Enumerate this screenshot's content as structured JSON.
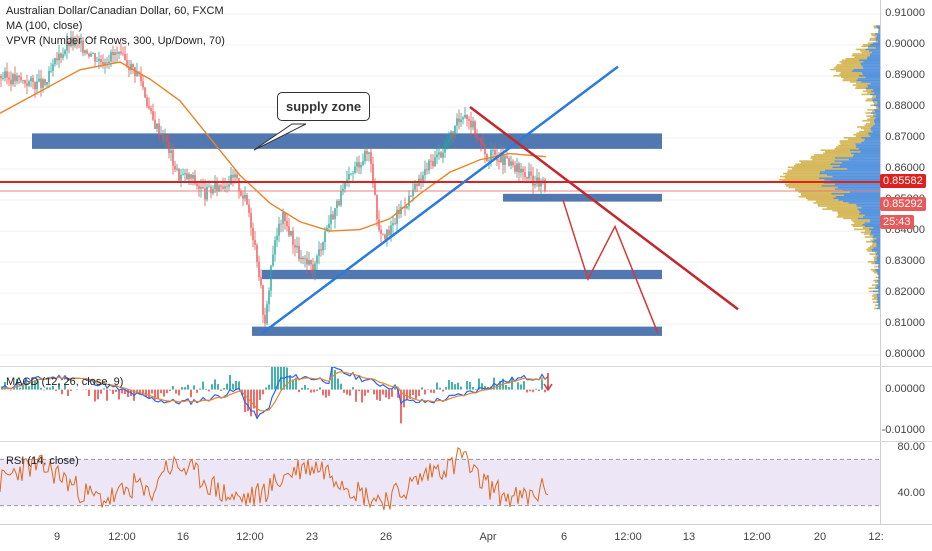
{
  "legend": {
    "symbol": "Australian Dollar/Canadian Dollar, 60, FXCM",
    "ma": "MA (100, close)",
    "vpvr": "VPVR (Number Of Rows, 300, Up/Down, 70)",
    "macd": "MACD (12, 26, close, 9)",
    "rsi": "RSI (14, close)"
  },
  "annotation": {
    "callout": "supply zone"
  },
  "price_tags": {
    "last": "0.85582",
    "level": "0.85292",
    "countdown": "25:43"
  },
  "colors": {
    "price_line": "#e0201e",
    "zone": "#3f69a8",
    "trend": "#2b7bd8",
    "down": "#c4262b",
    "bull": "#26a69a",
    "bear": "#ef5350",
    "ma": "#e8842a",
    "rsi": "#e06820"
  },
  "chart_data": [
    {
      "type": "candlestick",
      "title": "Australian Dollar/Canadian Dollar, 60, FXCM",
      "ylim": [
        0.7965,
        0.9145
      ],
      "y_ticks": [
        "0.91000",
        "0.90000",
        "0.89000",
        "0.88000",
        "0.87000",
        "0.86000",
        "0.85000",
        "0.84000",
        "0.83000",
        "0.82000",
        "0.81000",
        "0.80000"
      ],
      "x_ticks": [
        "9",
        "12:00",
        "16",
        "12:00",
        "23",
        "26",
        "Apr",
        "6",
        "12:00",
        "13",
        "12:00",
        "20",
        "12:"
      ],
      "close_path": [
        [
          0,
          0.89
        ],
        [
          15,
          0.889
        ],
        [
          30,
          0.888
        ],
        [
          45,
          0.887
        ],
        [
          58,
          0.896
        ],
        [
          70,
          0.901
        ],
        [
          85,
          0.899
        ],
        [
          100,
          0.895
        ],
        [
          115,
          0.897
        ],
        [
          128,
          0.894
        ],
        [
          140,
          0.89
        ],
        [
          152,
          0.876
        ],
        [
          165,
          0.87
        ],
        [
          178,
          0.858
        ],
        [
          192,
          0.857
        ],
        [
          205,
          0.852
        ],
        [
          220,
          0.855
        ],
        [
          235,
          0.857
        ],
        [
          248,
          0.848
        ],
        [
          258,
          0.83
        ],
        [
          265,
          0.809
        ],
        [
          272,
          0.832
        ],
        [
          282,
          0.845
        ],
        [
          292,
          0.838
        ],
        [
          302,
          0.83
        ],
        [
          314,
          0.828
        ],
        [
          325,
          0.84
        ],
        [
          336,
          0.848
        ],
        [
          348,
          0.856
        ],
        [
          358,
          0.862
        ],
        [
          370,
          0.866
        ],
        [
          378,
          0.842
        ],
        [
          388,
          0.838
        ],
        [
          398,
          0.846
        ],
        [
          410,
          0.851
        ],
        [
          420,
          0.856
        ],
        [
          430,
          0.862
        ],
        [
          440,
          0.865
        ],
        [
          452,
          0.871
        ],
        [
          464,
          0.879
        ],
        [
          476,
          0.872
        ],
        [
          486,
          0.864
        ],
        [
          496,
          0.865
        ],
        [
          506,
          0.862
        ],
        [
          516,
          0.86
        ],
        [
          526,
          0.858
        ],
        [
          536,
          0.856
        ],
        [
          546,
          0.854
        ]
      ],
      "ma_path": [
        [
          0,
          0.878
        ],
        [
          40,
          0.885
        ],
        [
          80,
          0.892
        ],
        [
          120,
          0.8945
        ],
        [
          150,
          0.889
        ],
        [
          180,
          0.882
        ],
        [
          210,
          0.87
        ],
        [
          240,
          0.858
        ],
        [
          270,
          0.849
        ],
        [
          300,
          0.843
        ],
        [
          330,
          0.84
        ],
        [
          360,
          0.8405
        ],
        [
          390,
          0.844
        ],
        [
          420,
          0.852
        ],
        [
          450,
          0.859
        ],
        [
          480,
          0.863
        ],
        [
          510,
          0.865
        ],
        [
          546,
          0.864
        ]
      ],
      "lines": {
        "current_price": 0.85582,
        "level": 0.85292,
        "supply_zone": [
          0.8665,
          0.8715
        ],
        "support_zone_upper": [
          0.8495,
          0.852
        ],
        "support_zone_mid": [
          0.8245,
          0.8275
        ],
        "support_zone_low": [
          0.8062,
          0.8092
        ],
        "trendline": [
          [
            262,
            0.807
          ],
          [
            618,
            0.893
          ]
        ],
        "down_trendline": [
          [
            470,
            0.88
          ],
          [
            738,
            0.8148
          ]
        ],
        "projection": [
          [
            563,
            0.85
          ],
          [
            588,
            0.8245
          ],
          [
            615,
            0.8415
          ],
          [
            658,
            0.807
          ]
        ]
      }
    },
    {
      "type": "line",
      "title": "MACD (12, 26, close, 9)",
      "y_ticks": [
        "0.00000",
        "-0.01000"
      ],
      "ylim": [
        -0.0125,
        0.0055
      ]
    },
    {
      "type": "line",
      "title": "RSI (14, close)",
      "y_ticks": [
        "80.00",
        "40.00"
      ],
      "ylim": [
        15,
        85
      ],
      "band": [
        30,
        70
      ]
    }
  ]
}
